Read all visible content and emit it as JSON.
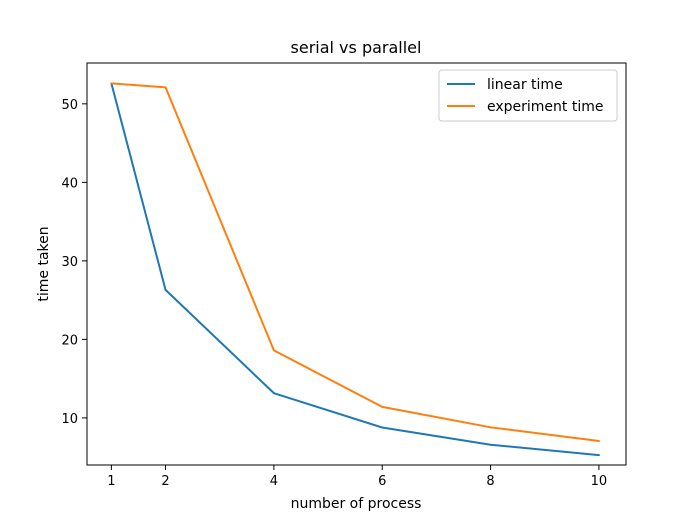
{
  "chart_data": {
    "type": "line",
    "title": "serial vs parallel",
    "xlabel": "number of process",
    "ylabel": "time taken",
    "x": [
      1,
      2,
      4,
      6,
      8,
      10
    ],
    "x_ticks": [
      1,
      2,
      4,
      6,
      8,
      10
    ],
    "y_ticks": [
      10,
      20,
      30,
      40,
      50
    ],
    "xlim": [
      0.55,
      10.5
    ],
    "ylim": [
      4.0,
      55.2
    ],
    "series": [
      {
        "name": "linear time",
        "color": "#1f77b4",
        "values": [
          52.6,
          26.3,
          13.15,
          8.77,
          6.58,
          5.26
        ]
      },
      {
        "name": "experiment time",
        "color": "#ff7f0e",
        "values": [
          52.6,
          52.1,
          18.6,
          11.4,
          8.8,
          7.05
        ]
      }
    ],
    "grid": false,
    "legend_position": "top-right"
  }
}
